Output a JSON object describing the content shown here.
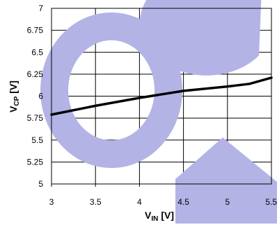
{
  "chart_data": {
    "type": "line",
    "ylabel_main": "V",
    "ylabel_sub": "CP",
    "ylabel_unit": "[V]",
    "xlabel_main": "V",
    "xlabel_sub": "IN",
    "xlabel_unit": "[V]",
    "xlim": [
      3,
      5.5
    ],
    "ylim": [
      5,
      7
    ],
    "x_ticks": [
      "3",
      "3.5",
      "4",
      "4.5",
      "5",
      "5.5"
    ],
    "y_ticks": [
      "5",
      "5.25",
      "5.5",
      "5.75",
      "6",
      "6.25",
      "6.5",
      "6.75",
      "7"
    ],
    "grid": true,
    "series": [
      {
        "color": "#000000",
        "x": [
          3.0,
          3.5,
          4.0,
          4.5,
          5.0,
          5.25,
          5.5
        ],
        "y": [
          5.79,
          5.89,
          5.98,
          6.06,
          6.11,
          6.14,
          6.21
        ]
      }
    ]
  },
  "watermark": {
    "color": "#b3b3e6"
  }
}
